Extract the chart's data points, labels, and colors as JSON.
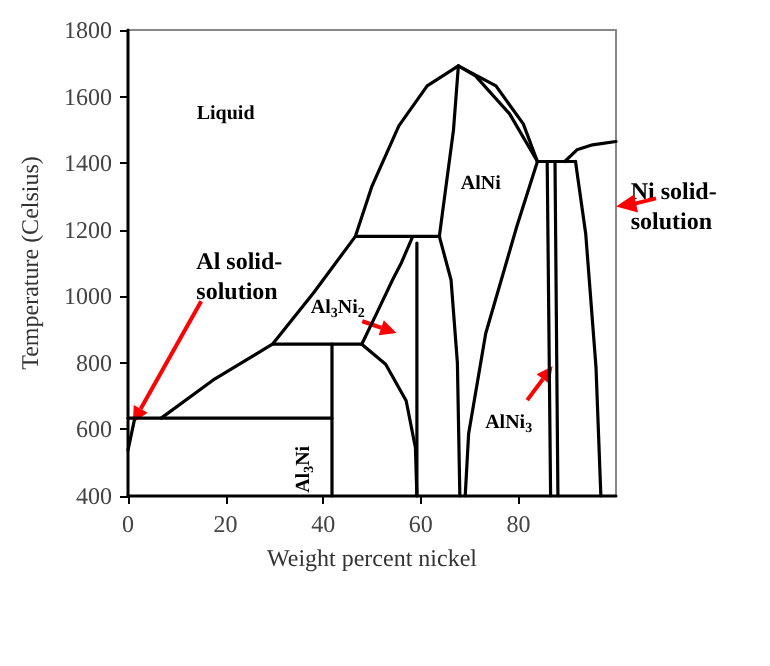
{
  "chart_data": {
    "type": "line",
    "xlabel": "Weight percent nickel",
    "ylabel": "Temperature (Celsius)",
    "xlim": [
      0,
      100
    ],
    "xticks": [
      0,
      20,
      40,
      60,
      80
    ],
    "ylim": [
      400,
      1800
    ],
    "yticks": [
      400,
      600,
      800,
      1000,
      1200,
      1400,
      1600,
      1800
    ],
    "grid": false,
    "marker": "none",
    "line_style": "solid",
    "series": [
      {
        "color": "#000000",
        "x": [
          0,
          1.3
        ],
        "values": [
          538,
          628
        ]
      },
      {
        "color": "#000000",
        "x": [
          6.8,
          17.4,
          29.6,
          38,
          46.6,
          50,
          55.5,
          61.3,
          67.7,
          75.4,
          81,
          83.9
        ],
        "values": [
          634,
          748,
          856,
          1010,
          1180,
          1331,
          1512,
          1632,
          1692,
          1632,
          1518,
          1405
        ]
      },
      {
        "color": "#000000",
        "x": [
          0,
          41.8
        ],
        "values": [
          634,
          634
        ]
      },
      {
        "color": "#000000",
        "x": [
          41.8,
          41.8
        ],
        "values": [
          856,
          400
        ]
      },
      {
        "color": "#000000",
        "x": [
          29.6,
          47.9
        ],
        "values": [
          856,
          856
        ]
      },
      {
        "color": "#000000",
        "x": [
          46.6,
          63.8
        ],
        "values": [
          1180,
          1180
        ]
      },
      {
        "color": "#000000",
        "x": [
          58.2,
          56,
          54.2,
          51,
          47.9
        ],
        "values": [
          1175,
          1100,
          1049,
          950,
          856
        ]
      },
      {
        "color": "#000000",
        "x": [
          47.9,
          52.8,
          57,
          58.9,
          59.2
        ],
        "values": [
          856,
          796,
          686,
          545,
          400
        ]
      },
      {
        "color": "#000000",
        "x": [
          59.2,
          59.2
        ],
        "values": [
          1160,
          400
        ]
      },
      {
        "color": "#000000",
        "x": [
          67.7,
          66.7,
          63.8,
          66.2,
          67.5,
          68
        ],
        "values": [
          1692,
          1500,
          1180,
          1049,
          800,
          400
        ]
      },
      {
        "color": "#000000",
        "x": [
          67.7,
          71.2,
          78.2,
          83.9
        ],
        "values": [
          1692,
          1662,
          1548,
          1405
        ]
      },
      {
        "color": "#000000",
        "x": [
          83.9,
          79.7,
          73.3,
          69.8,
          69.1
        ],
        "values": [
          1405,
          1211,
          888,
          587,
          400
        ]
      },
      {
        "color": "#000000",
        "x": [
          83.9,
          91.7
        ],
        "values": [
          1405,
          1405
        ]
      },
      {
        "color": "#000000",
        "x": [
          85.9,
          86.6
        ],
        "values": [
          1405,
          400
        ]
      },
      {
        "color": "#000000",
        "x": [
          87.5,
          88.1
        ],
        "values": [
          1405,
          400
        ]
      },
      {
        "color": "#000000",
        "x": [
          91.7,
          93.8,
          95.9,
          96.9
        ],
        "values": [
          1405,
          1187,
          787,
          400
        ]
      },
      {
        "color": "#000000",
        "x": [
          89.5,
          92,
          95.2,
          100
        ],
        "values": [
          1405,
          1440,
          1455,
          1465
        ]
      }
    ],
    "annotations": [
      "Liquid",
      "AlNi",
      "Al$_{3}$Ni$_{2}$",
      "AlNi$_{3}$",
      "Al$_{3}$Ni",
      "Al solid-solution",
      "Ni solid-solution"
    ]
  }
}
